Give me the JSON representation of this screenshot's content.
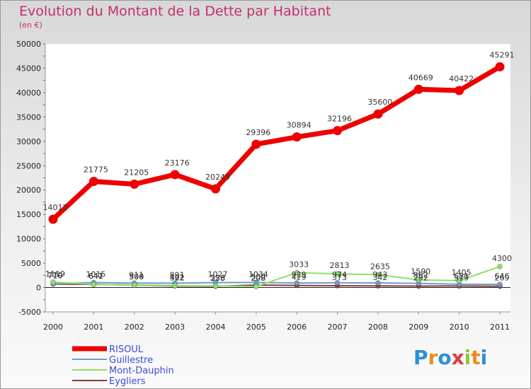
{
  "header": {
    "title": "Evolution du Montant de la Dette par Habitant",
    "subtitle": "(en €)"
  },
  "logo": {
    "text": "Proxiti"
  },
  "chart_data": {
    "type": "line",
    "title": "Evolution du Montant de la Dette par Habitant",
    "ylabel": "(en €)",
    "xlabel": "",
    "ylim": [
      -5000,
      50000
    ],
    "yticks": [
      -5000,
      0,
      5000,
      10000,
      15000,
      20000,
      25000,
      30000,
      35000,
      40000,
      45000,
      50000
    ],
    "categories": [
      "2000",
      "2001",
      "2002",
      "2003",
      "2004",
      "2005",
      "2006",
      "2007",
      "2008",
      "2009",
      "2010",
      "2011"
    ],
    "legend_position": "bottom-left",
    "series": [
      {
        "name": "RISOUL",
        "color": "#ee0000",
        "values": [
          14012,
          21775,
          21205,
          23176,
          20249,
          29396,
          30894,
          32196,
          35600,
          40669,
          40422,
          45291
        ],
        "labels": [
          "14012",
          "21775",
          "21205",
          "23176",
          "20249",
          "29396",
          "30894",
          "32196",
          "35600",
          "40669",
          "40422",
          "45291"
        ]
      },
      {
        "name": "Guillestre",
        "color": "#6a9fcc",
        "values": [
          779,
          1015,
          911,
          891,
          1027,
          1034,
          929,
          974,
          943,
          862,
          681,
          646
        ],
        "labels": [
          "779",
          "1015",
          "911",
          "891",
          "1027",
          "1034",
          "929",
          "974",
          "943",
          "862",
          "681",
          "646"
        ]
      },
      {
        "name": "Mont-Dauphin",
        "color": "#8ee068",
        "values": [
          1119,
          641,
          506,
          402,
          326,
          208,
          3033,
          2813,
          2635,
          1590,
          1405,
          4300
        ],
        "labels": [
          "1119",
          "641",
          "506",
          "402",
          "326",
          "208",
          "3033",
          "2813",
          "2635",
          "1590",
          "1405",
          "4300"
        ]
      },
      {
        "name": "Eygliers",
        "color": "#8b3a3a",
        "values": [
          710,
          642,
          500,
          322,
          258,
          500,
          429,
          373,
          342,
          292,
          319,
          269
        ],
        "labels": [
          "710",
          "642",
          "500",
          "322",
          "258",
          "500",
          "429",
          "373",
          "342",
          "292",
          "319",
          "269"
        ]
      }
    ]
  }
}
